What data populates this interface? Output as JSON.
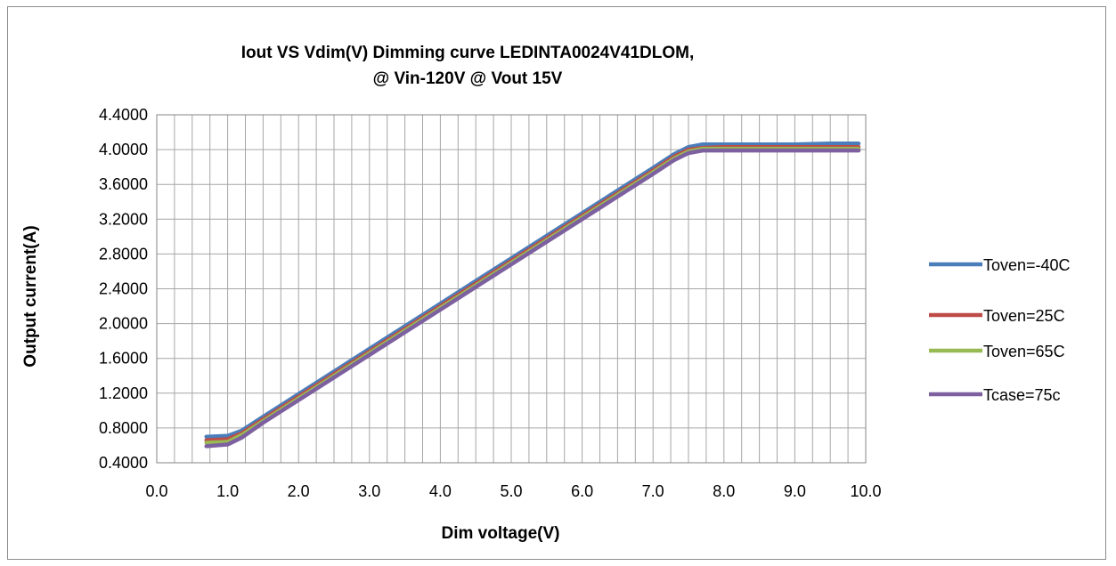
{
  "chart_data": {
    "type": "line",
    "title_lines": [
      "Iout VS Vdim(V) Dimming curve LEDINTA0024V41DLOM,",
      "@ Vin-120V @ Vout 15V"
    ],
    "xlabel": "Dim voltage(V)",
    "ylabel": "Output current(A)",
    "xlim": [
      0,
      10
    ],
    "ylim": [
      0.4,
      4.4
    ],
    "x_ticks": [
      "0.0",
      "1.0",
      "2.0",
      "3.0",
      "4.0",
      "5.0",
      "6.0",
      "7.0",
      "8.0",
      "9.0",
      "10.0"
    ],
    "y_ticks": [
      "0.4000",
      "0.8000",
      "1.2000",
      "1.6000",
      "2.0000",
      "2.4000",
      "2.8000",
      "3.2000",
      "3.6000",
      "4.0000",
      "4.4000"
    ],
    "grid": true,
    "legend_position": "right",
    "x": [
      0.7,
      1.0,
      1.2,
      1.5,
      2.0,
      2.5,
      3.0,
      3.5,
      4.0,
      4.5,
      5.0,
      5.5,
      6.0,
      6.5,
      7.0,
      7.3,
      7.5,
      7.7,
      8.0,
      8.5,
      9.0,
      9.5,
      9.9
    ],
    "series": [
      {
        "name": "Toven=-40C",
        "color": "#4a7ebb",
        "values": [
          0.7,
          0.71,
          0.77,
          0.93,
          1.19,
          1.45,
          1.71,
          1.97,
          2.23,
          2.49,
          2.75,
          3.01,
          3.27,
          3.53,
          3.79,
          3.95,
          4.03,
          4.06,
          4.06,
          4.06,
          4.06,
          4.07,
          4.07
        ]
      },
      {
        "name": "Toven=25C",
        "color": "#be4b48",
        "values": [
          0.66,
          0.67,
          0.74,
          0.9,
          1.16,
          1.42,
          1.68,
          1.94,
          2.2,
          2.46,
          2.72,
          2.98,
          3.24,
          3.5,
          3.76,
          3.92,
          4.0,
          4.02,
          4.03,
          4.03,
          4.03,
          4.03,
          4.03
        ]
      },
      {
        "name": "Toven=65C",
        "color": "#98b954",
        "values": [
          0.63,
          0.64,
          0.72,
          0.88,
          1.14,
          1.4,
          1.66,
          1.92,
          2.18,
          2.44,
          2.7,
          2.96,
          3.22,
          3.48,
          3.74,
          3.9,
          3.98,
          4.01,
          4.01,
          4.01,
          4.01,
          4.01,
          4.01
        ]
      },
      {
        "name": "Tcase=75c",
        "color": "#7d60a0",
        "values": [
          0.59,
          0.61,
          0.69,
          0.86,
          1.12,
          1.38,
          1.64,
          1.9,
          2.16,
          2.42,
          2.68,
          2.94,
          3.2,
          3.46,
          3.72,
          3.88,
          3.96,
          3.99,
          3.99,
          3.99,
          3.99,
          3.99,
          3.99
        ]
      }
    ]
  }
}
